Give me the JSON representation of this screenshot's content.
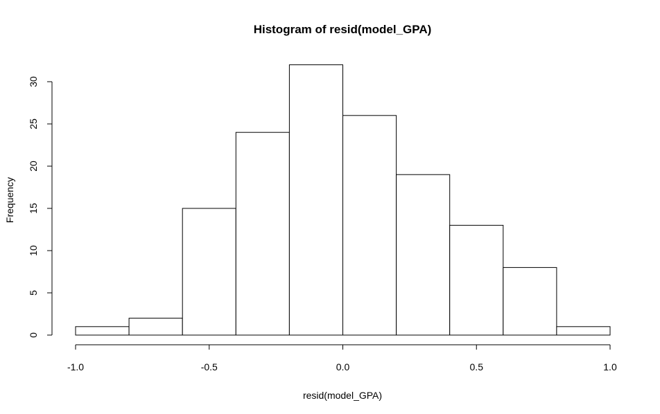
{
  "chart_data": {
    "type": "bar",
    "title": "Histogram of resid(model_GPA)",
    "xlabel": "resid(model_GPA)",
    "ylabel": "Frequency",
    "bins": [
      {
        "start": -1.0,
        "end": -0.8,
        "count": 1
      },
      {
        "start": -0.8,
        "end": -0.6,
        "count": 2
      },
      {
        "start": -0.6,
        "end": -0.4,
        "count": 15
      },
      {
        "start": -0.4,
        "end": -0.2,
        "count": 24
      },
      {
        "start": -0.2,
        "end": 0.0,
        "count": 32
      },
      {
        "start": 0.0,
        "end": 0.2,
        "count": 26
      },
      {
        "start": 0.2,
        "end": 0.4,
        "count": 19
      },
      {
        "start": 0.4,
        "end": 0.6,
        "count": 13
      },
      {
        "start": 0.6,
        "end": 0.8,
        "count": 8
      },
      {
        "start": 0.8,
        "end": 1.0,
        "count": 1
      }
    ],
    "xlim": [
      -1.0,
      1.0
    ],
    "ylim": [
      0,
      32
    ],
    "xticks": [
      {
        "value": -1.0,
        "label": "-1.0"
      },
      {
        "value": -0.5,
        "label": "-0.5"
      },
      {
        "value": 0.0,
        "label": "0.0"
      },
      {
        "value": 0.5,
        "label": "0.5"
      },
      {
        "value": 1.0,
        "label": "1.0"
      }
    ],
    "yticks": [
      {
        "value": 0,
        "label": "0"
      },
      {
        "value": 5,
        "label": "5"
      },
      {
        "value": 10,
        "label": "10"
      },
      {
        "value": 15,
        "label": "15"
      },
      {
        "value": 20,
        "label": "20"
      },
      {
        "value": 25,
        "label": "25"
      },
      {
        "value": 30,
        "label": "30"
      }
    ],
    "grid": false,
    "legend": "none"
  }
}
